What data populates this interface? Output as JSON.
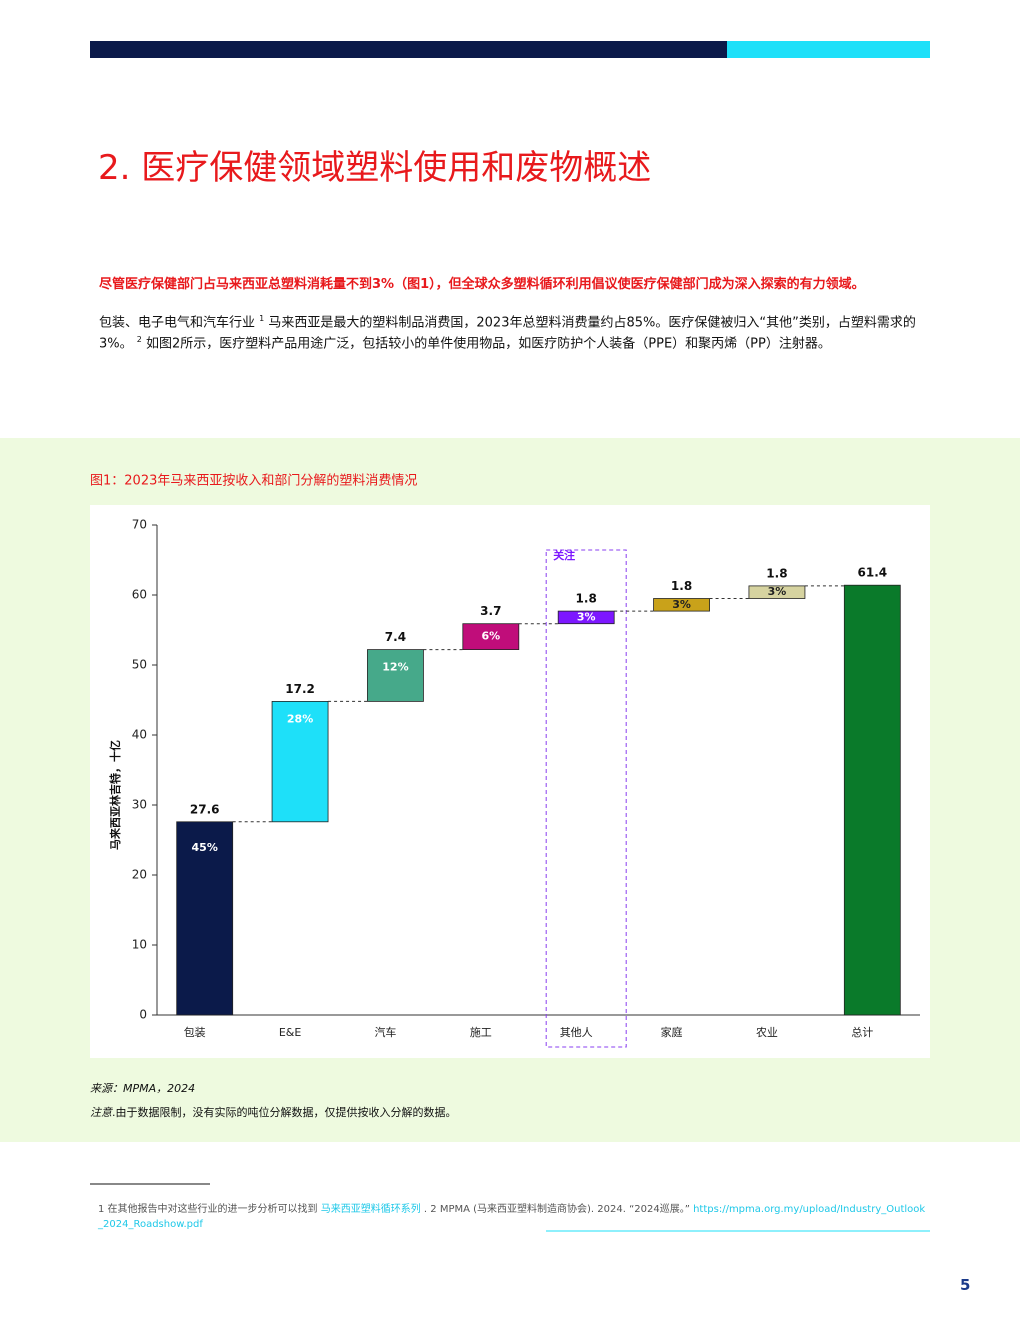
{
  "header": {
    "title": "2. 医疗保健领域塑料使用和废物概述"
  },
  "intro": {
    "highlight": "尽管医疗保健部门占马来西亚总塑料消耗量不到3%（图1），但全球众多塑料循环利用倡议使医疗保健部门成为深入探索的有力领域。",
    "body": [
      "包装、电子电气和汽车行业",
      "1",
      "马来西亚是最大的塑料制品消费国，2023年总塑料消费量约占85%。医疗保健被归入“其他”类别，占塑料需求的3%。",
      "2",
      "如图2所示，医疗塑料产品用途广泛，包括较小的单件使用物品，如医疗防护个人装备（PPE）和聚丙烯（PP）注射器。"
    ]
  },
  "chart_data": {
    "type": "waterfall",
    "title": "图1：2023年马来西亚按收入和部门分解的塑料消费情况",
    "y_label": "马来西亚林吉特，十亿",
    "categories": [
      "包装",
      "E&E",
      "汽车",
      "施工",
      "其他人",
      "家庭",
      "农业",
      "总计"
    ],
    "values": [
      27.6,
      17.2,
      7.4,
      3.7,
      1.8,
      1.8,
      1.8,
      61.4
    ],
    "segment_labels": [
      "45%",
      "28%",
      "12%",
      "6%",
      "3%",
      "3%",
      "3%",
      null
    ],
    "colors": [
      "#0b1a4a",
      "#1ee0f9",
      "#46a98a",
      "#c00d7a",
      "#7d17ff",
      "#c9a21a",
      "#d6d3a0",
      "#0a7a2a"
    ],
    "ylim": [
      0,
      70
    ],
    "yticks": [
      0,
      10,
      20,
      30,
      40,
      50,
      60,
      70
    ],
    "annotation": "关注",
    "highlight": 4,
    "source": "来源：MPMA，2024",
    "note_label": "注意",
    "note": ".由于数据限制，没有实际的吨位分解数据，仅提供按收入分解的数据。"
  },
  "footnotes": {
    "text1": "1 在其他报告中对这些行业的进一步分析可以找到",
    "link1": "马来西亚塑料循环系列",
    "text2": ". 2 MPMA (马来西亚塑料制造商协会). 2024. “2024巡展。”",
    "link2": "https://mpma.org.my/upload/Industry_Outlook_2024_Roadshow.pdf"
  },
  "page_number": "5"
}
